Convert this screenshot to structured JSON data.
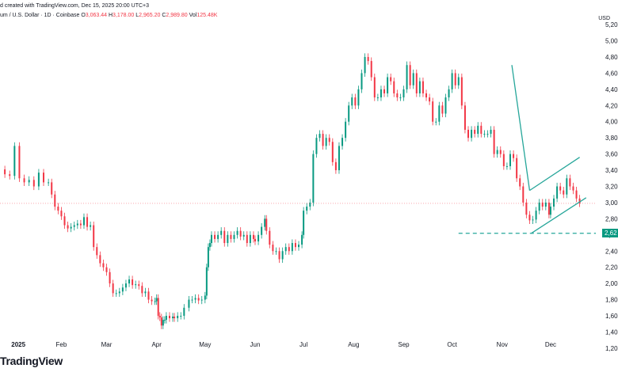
{
  "header": {
    "line1": "d created with TradingView.com, Dec 15, 2025 20:00 UTC+3",
    "line2_symbol": "um / U.S. Dollar · 1D · Coinbase",
    "o_label": "O",
    "o_value": "3,063.44",
    "h_label": "H",
    "h_value": "3,178.00",
    "l_label": "L",
    "l_value": "2,965.20",
    "c_label": "C",
    "c_value": "2,989.80",
    "vol_label": "Vol",
    "vol_value": "125.48K"
  },
  "brand": "TradingView",
  "colors": {
    "up": "#089981",
    "down": "#f23645",
    "trend": "#26a69a",
    "support": "#26a69a"
  },
  "chart_data": {
    "type": "candlestick",
    "title": "",
    "y_unit": "USD",
    "ylim": [
      1150,
      5250
    ],
    "y_ticks": [
      "1,20",
      "1,40",
      "1,60",
      "1,80",
      "2,00",
      "2,20",
      "2,40",
      "2,60",
      "2,80",
      "3,00",
      "3,20",
      "3,40",
      "3,60",
      "3,80",
      "4,00",
      "4,20",
      "4,40",
      "4,60",
      "4,80",
      "5,00",
      "5,20"
    ],
    "y_tick_values": [
      1200,
      1400,
      1600,
      1800,
      2000,
      2200,
      2400,
      2600,
      2800,
      3000,
      3200,
      3400,
      3600,
      3800,
      4000,
      4200,
      4400,
      4600,
      4800,
      5000,
      5200
    ],
    "x_ticks": [
      "2025",
      "Feb",
      "Mar",
      "Apr",
      "May",
      "Jun",
      "Jul",
      "Aug",
      "Sep",
      "Oct",
      "Nov",
      "Dec"
    ],
    "x_tick_days": [
      0,
      31,
      59,
      90,
      120,
      151,
      181,
      212,
      243,
      273,
      304,
      334
    ],
    "x_range_days": [
      -7,
      362
    ],
    "series": [
      {
        "points": [
          [
            -7,
            3410
          ],
          [
            -4,
            3350
          ],
          [
            -1,
            3330
          ],
          [
            2,
            3700
          ],
          [
            5,
            3300
          ],
          [
            8,
            3250
          ],
          [
            11,
            3280
          ],
          [
            14,
            3200
          ],
          [
            17,
            3370
          ],
          [
            20,
            3250
          ],
          [
            23,
            3250
          ],
          [
            25,
            3100
          ],
          [
            27,
            2950
          ],
          [
            29,
            2900
          ],
          [
            31,
            2830
          ],
          [
            33,
            2720
          ],
          [
            35,
            2680
          ],
          [
            37,
            2700
          ],
          [
            39,
            2720
          ],
          [
            41,
            2740
          ],
          [
            43,
            2720
          ],
          [
            45,
            2820
          ],
          [
            47,
            2700
          ],
          [
            49,
            2720
          ],
          [
            51,
            2450
          ],
          [
            53,
            2350
          ],
          [
            55,
            2250
          ],
          [
            57,
            2200
          ],
          [
            59,
            2140
          ],
          [
            61,
            2000
          ],
          [
            63,
            1880
          ],
          [
            65,
            1880
          ],
          [
            67,
            1900
          ],
          [
            69,
            1950
          ],
          [
            71,
            2000
          ],
          [
            73,
            2050
          ],
          [
            75,
            1980
          ],
          [
            77,
            1990
          ],
          [
            79,
            1970
          ],
          [
            81,
            1880
          ],
          [
            83,
            1900
          ],
          [
            85,
            1800
          ],
          [
            87,
            1780
          ],
          [
            89,
            1780
          ],
          [
            90,
            1820
          ],
          [
            91,
            1600
          ],
          [
            92,
            1580
          ],
          [
            93,
            1480
          ],
          [
            94,
            1550
          ],
          [
            95,
            1550
          ],
          [
            96,
            1600
          ],
          [
            98,
            1570
          ],
          [
            100,
            1590
          ],
          [
            101,
            1570
          ],
          [
            103,
            1600
          ],
          [
            105,
            1600
          ],
          [
            107,
            1700
          ],
          [
            110,
            1800
          ],
          [
            112,
            1800
          ],
          [
            114,
            1820
          ],
          [
            116,
            1790
          ],
          [
            118,
            1800
          ],
          [
            120,
            1850
          ],
          [
            121,
            2200
          ],
          [
            122,
            2450
          ],
          [
            123,
            2500
          ],
          [
            124,
            2600
          ],
          [
            126,
            2550
          ],
          [
            128,
            2600
          ],
          [
            130,
            2650
          ],
          [
            132,
            2500
          ],
          [
            134,
            2600
          ],
          [
            136,
            2550
          ],
          [
            138,
            2600
          ],
          [
            140,
            2650
          ],
          [
            142,
            2580
          ],
          [
            144,
            2600
          ],
          [
            146,
            2500
          ],
          [
            148,
            2600
          ],
          [
            150,
            2550
          ],
          [
            151,
            2520
          ],
          [
            153,
            2600
          ],
          [
            155,
            2700
          ],
          [
            157,
            2800
          ],
          [
            158,
            2650
          ],
          [
            160,
            2480
          ],
          [
            162,
            2400
          ],
          [
            164,
            2400
          ],
          [
            166,
            2300
          ],
          [
            168,
            2400
          ],
          [
            170,
            2450
          ],
          [
            172,
            2400
          ],
          [
            174,
            2500
          ],
          [
            176,
            2450
          ],
          [
            178,
            2480
          ],
          [
            180,
            2600
          ],
          [
            181,
            2900
          ],
          [
            183,
            2950
          ],
          [
            185,
            3000
          ],
          [
            187,
            3600
          ],
          [
            189,
            3800
          ],
          [
            191,
            3850
          ],
          [
            193,
            3700
          ],
          [
            195,
            3800
          ],
          [
            197,
            3750
          ],
          [
            199,
            3500
          ],
          [
            201,
            3400
          ],
          [
            203,
            3700
          ],
          [
            205,
            3800
          ],
          [
            207,
            4000
          ],
          [
            209,
            4200
          ],
          [
            211,
            4300
          ],
          [
            213,
            4200
          ],
          [
            215,
            4400
          ],
          [
            217,
            4600
          ],
          [
            219,
            4800
          ],
          [
            221,
            4750
          ],
          [
            223,
            4550
          ],
          [
            225,
            4300
          ],
          [
            227,
            4300
          ],
          [
            229,
            4400
          ],
          [
            231,
            4350
          ],
          [
            233,
            4550
          ],
          [
            235,
            4500
          ],
          [
            237,
            4350
          ],
          [
            239,
            4300
          ],
          [
            241,
            4300
          ],
          [
            243,
            4400
          ],
          [
            245,
            4700
          ],
          [
            247,
            4450
          ],
          [
            249,
            4600
          ],
          [
            251,
            4350
          ],
          [
            253,
            4500
          ],
          [
            255,
            4350
          ],
          [
            257,
            4300
          ],
          [
            259,
            4250
          ],
          [
            261,
            4000
          ],
          [
            263,
            4000
          ],
          [
            265,
            4200
          ],
          [
            267,
            4100
          ],
          [
            269,
            4300
          ],
          [
            271,
            4400
          ],
          [
            273,
            4600
          ],
          [
            275,
            4450
          ],
          [
            277,
            4550
          ],
          [
            279,
            4200
          ],
          [
            281,
            3900
          ],
          [
            283,
            3800
          ],
          [
            285,
            3900
          ],
          [
            287,
            3850
          ],
          [
            289,
            3950
          ],
          [
            291,
            3850
          ],
          [
            293,
            3850
          ],
          [
            295,
            3850
          ],
          [
            297,
            3900
          ],
          [
            299,
            3600
          ],
          [
            301,
            3650
          ],
          [
            303,
            3600
          ],
          [
            305,
            3450
          ],
          [
            307,
            3450
          ],
          [
            309,
            3600
          ],
          [
            311,
            3550
          ],
          [
            313,
            3300
          ],
          [
            315,
            3200
          ],
          [
            317,
            3000
          ],
          [
            319,
            2850
          ],
          [
            321,
            2780
          ],
          [
            323,
            2790
          ],
          [
            325,
            2900
          ],
          [
            327,
            3000
          ],
          [
            329,
            2950
          ],
          [
            331,
            3000
          ],
          [
            333,
            2850
          ],
          [
            334,
            2950
          ],
          [
            336,
            3050
          ],
          [
            338,
            3200
          ],
          [
            340,
            3150
          ],
          [
            342,
            3100
          ],
          [
            344,
            3300
          ],
          [
            346,
            3200
          ],
          [
            348,
            3150
          ],
          [
            350,
            3050
          ],
          [
            352,
            2990
          ]
        ]
      }
    ],
    "last_price_level": 2990,
    "support_level": "2,62",
    "support_value": 2620
  }
}
